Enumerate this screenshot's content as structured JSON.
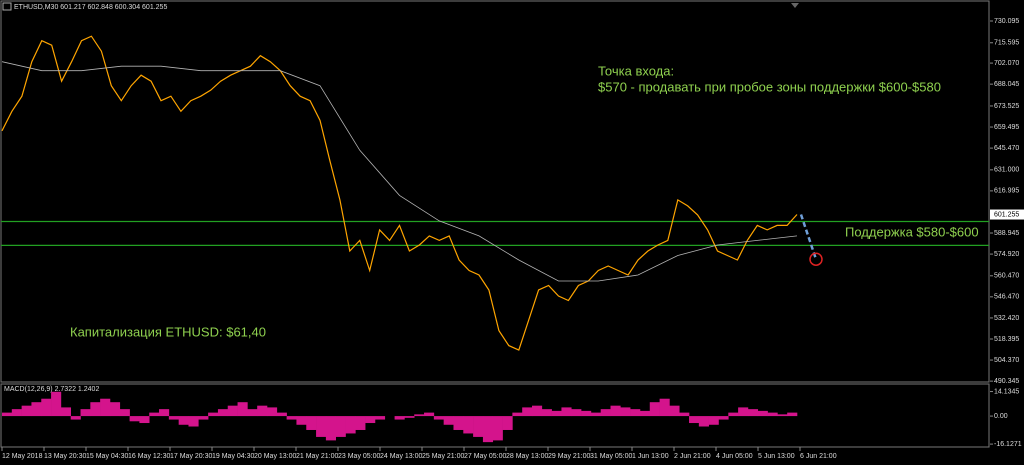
{
  "chart_data": [
    {
      "type": "line",
      "header": "ETHUSD,M30 601.217 602.848 600.304 601.255",
      "ylim": [
        489.1,
        743.4
      ],
      "yticks": [
        730.095,
        715.595,
        {
          "value": 702.07,
          "label": "702.070"
        },
        688.045,
        673.525,
        659.495,
        {
          "value": 645.47,
          "label": "645.470"
        },
        {
          "value": 631,
          "label": "631.000"
        },
        616.995,
        588.945,
        {
          "value": 574.92,
          "label": "574.920"
        },
        {
          "value": 560.47,
          "label": "560.470"
        },
        {
          "value": 546.47,
          "label": "546.470"
        },
        {
          "value": 532.42,
          "label": "532.420"
        },
        518.395,
        {
          "value": 504.37,
          "label": "504.370"
        },
        490.345
      ],
      "last_price": 601.255,
      "series": [
        {
          "color": "#ffa500",
          "values": [
            657,
            670,
            680,
            703,
            717,
            714,
            690,
            703,
            717,
            720,
            710,
            687,
            677,
            687,
            694,
            690,
            677,
            680,
            670,
            677,
            680,
            684,
            690,
            694,
            697,
            700,
            707,
            703,
            697,
            687,
            680,
            677,
            664,
            637,
            611,
            577,
            584,
            564,
            591,
            584,
            594,
            577,
            581,
            587,
            584,
            587,
            571,
            564,
            561,
            551,
            524,
            514,
            511,
            531,
            551,
            554,
            547,
            544,
            554,
            557,
            564,
            567,
            564,
            561,
            571,
            577,
            581,
            584,
            611,
            607,
            601,
            591,
            577,
            574,
            571,
            584,
            594,
            591,
            594,
            594,
            601.255
          ]
        },
        {
          "color": "#b4b4b4",
          "values": [
            703,
            697,
            697,
            700,
            700,
            697,
            697,
            697,
            687,
            644,
            614,
            597,
            587,
            571,
            557,
            557,
            561,
            574,
            581,
            584,
            587
          ]
        }
      ],
      "levels": {
        "color": "#22a022",
        "values": [
          596.6,
          580.7
        ]
      },
      "forecast": {
        "color": "#6f9fd8",
        "values": [
          601.255,
          571.5
        ]
      },
      "annotation_color": "#8fd14f",
      "annotations": [
        "Точка входа:",
        "$570 - продавать при пробое зоны поддержки $600-$580",
        "Поддержка $580-$600",
        "Капитализация ETHUSD: $61,40"
      ],
      "x_labels": [
        "12 May 2018",
        "13 May 20:30",
        "15 May 04:30",
        "16 May 12:30",
        "17 May 20:30",
        "19 May 04:30",
        "20 May 13:00",
        "21 May 21:00",
        "23 May 05:00",
        "24 May 13:00",
        "25 May 21:00",
        "27 May 05:00",
        "28 May 13:00",
        "29 May 21:00",
        "31 May 05:00",
        "1 Jun 13:00",
        "2 Jun 21:00",
        "4 Jun 05:00",
        "5 Jun 13:00",
        "6 Jun 21:00"
      ]
    },
    {
      "type": "bar",
      "title": "MACD(12,26,9) 2.7322 1.2402",
      "ylim": [
        -17.8,
        17.9
      ],
      "yticks": [
        14.1345,
        {
          "value": 0,
          "label": "0.00"
        },
        -16.1271
      ],
      "color": "#d4148c",
      "values": [
        2,
        4,
        6,
        8,
        10,
        14,
        5,
        -2,
        4,
        8,
        10,
        8,
        4,
        -3,
        -4,
        2,
        4,
        -2,
        -5,
        -6,
        -2,
        2,
        4,
        6,
        8,
        4,
        6,
        5,
        2,
        -2,
        -5,
        -8,
        -12,
        -14,
        -12,
        -10,
        -8,
        -4,
        -2,
        0,
        -2,
        -1,
        1,
        2,
        -2,
        -5,
        -8,
        -10,
        -12,
        -15,
        -14,
        -8,
        2,
        5,
        6,
        4,
        3,
        5,
        4,
        3,
        2,
        4,
        6,
        5,
        4,
        3,
        8,
        10,
        6,
        2,
        -4,
        -6,
        -5,
        -2,
        2,
        5,
        4,
        3,
        2,
        1,
        2
      ]
    }
  ]
}
